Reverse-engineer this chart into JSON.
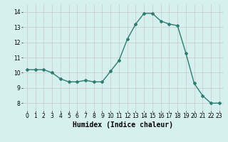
{
  "x": [
    0,
    1,
    2,
    3,
    4,
    5,
    6,
    7,
    8,
    9,
    10,
    11,
    12,
    13,
    14,
    15,
    16,
    17,
    18,
    19,
    20,
    21,
    22,
    23
  ],
  "y": [
    10.2,
    10.2,
    10.2,
    10.0,
    9.6,
    9.4,
    9.4,
    9.5,
    9.4,
    9.4,
    10.1,
    10.8,
    12.2,
    13.2,
    13.9,
    13.9,
    13.4,
    13.2,
    13.1,
    11.3,
    9.3,
    8.5,
    8.0,
    8.0
  ],
  "line_color": "#2e7d6e",
  "marker": "D",
  "marker_size": 2,
  "bg_color": "#d6f0f0",
  "grid_color": "#c8c8c8",
  "xlabel": "Humidex (Indice chaleur)",
  "xlim": [
    -0.5,
    23.5
  ],
  "ylim": [
    7.5,
    14.5
  ],
  "yticks": [
    8,
    9,
    10,
    11,
    12,
    13,
    14
  ],
  "xticks": [
    0,
    1,
    2,
    3,
    4,
    5,
    6,
    7,
    8,
    9,
    10,
    11,
    12,
    13,
    14,
    15,
    16,
    17,
    18,
    19,
    20,
    21,
    22,
    23
  ],
  "tick_fontsize": 5.5,
  "xlabel_fontsize": 7,
  "line_width": 1.0
}
